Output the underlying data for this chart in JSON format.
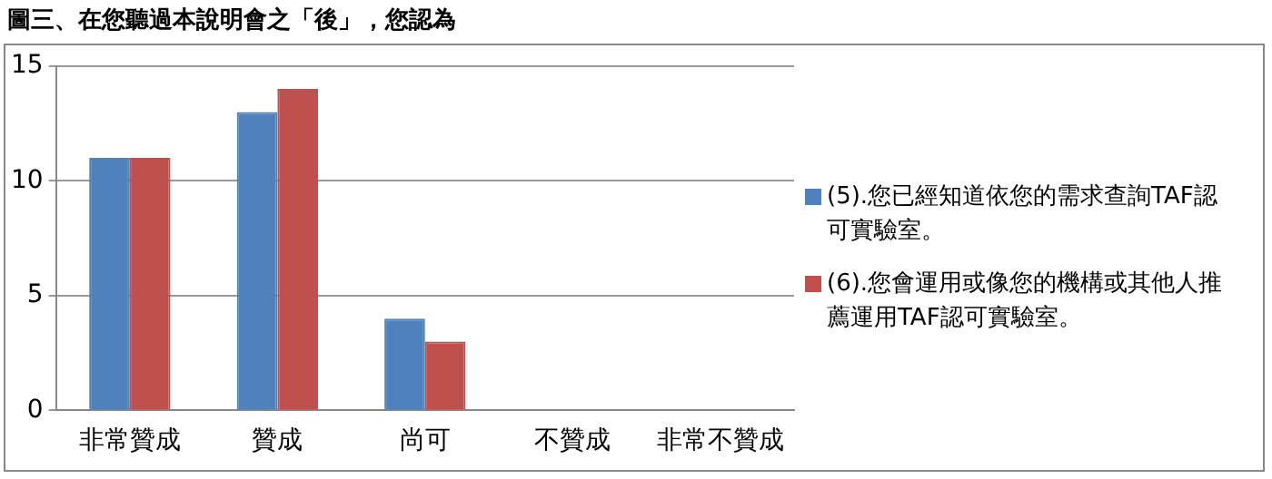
{
  "chart_data": {
    "type": "bar",
    "title": "圖三、在您聽過本說明會之「後」，您認為",
    "categories": [
      "非常贊成",
      "贊成",
      "尚可",
      "不贊成",
      "非常不贊成"
    ],
    "series": [
      {
        "name": "(5).您已經知道依您的需求查詢TAF認可實驗室。",
        "color": "#4f81bd",
        "values": [
          11,
          13,
          4,
          0,
          0
        ]
      },
      {
        "name": "(6).您會運用或像您的機構或其他人推薦運用TAF認可實驗室。",
        "color": "#c0504d",
        "values": [
          11,
          14,
          3,
          0,
          0
        ]
      }
    ],
    "ylim": [
      0,
      15
    ],
    "yticks": [
      0,
      5,
      10,
      15
    ],
    "grid": "y",
    "legend": "right"
  }
}
